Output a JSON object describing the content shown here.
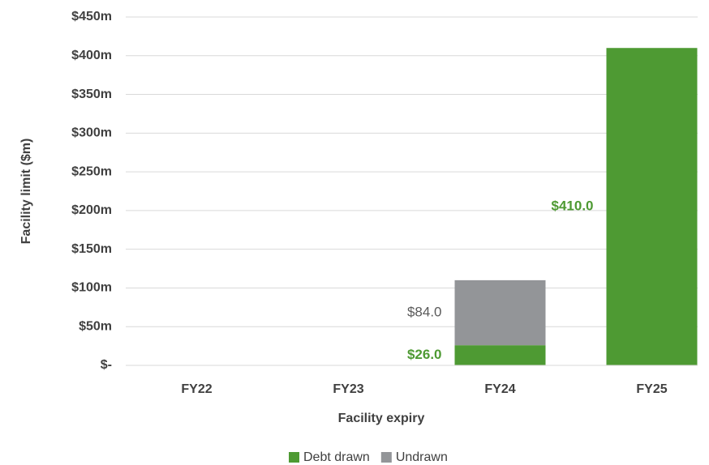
{
  "chart_data": {
    "type": "stacked_bar",
    "x_label": "Facility expiry",
    "y_label": "Facility limit ($m)",
    "categories": [
      "FY22",
      "FY23",
      "FY24",
      "FY25"
    ],
    "series": [
      {
        "name": "Debt drawn",
        "color": "#4e9a33",
        "values": [
          0,
          0,
          26,
          410
        ],
        "value_labels": [
          null,
          null,
          "$26.0",
          "$410.0"
        ]
      },
      {
        "name": "Undrawn",
        "color": "#939598",
        "values": [
          0,
          0,
          84,
          0
        ],
        "value_labels": [
          null,
          null,
          "$84.0",
          null
        ]
      }
    ],
    "ylim": [
      0,
      450
    ],
    "yticks": [
      {
        "value": 0,
        "label": "$-"
      },
      {
        "value": 50,
        "label": "$50m"
      },
      {
        "value": 100,
        "label": "$100m"
      },
      {
        "value": 150,
        "label": "$150m"
      },
      {
        "value": 200,
        "label": "$200m"
      },
      {
        "value": 250,
        "label": "$250m"
      },
      {
        "value": 300,
        "label": "$300m"
      },
      {
        "value": 350,
        "label": "$350m"
      },
      {
        "value": 400,
        "label": "$400m"
      },
      {
        "value": 450,
        "label": "$450m"
      }
    ],
    "grid": true,
    "legend": "bottom"
  }
}
